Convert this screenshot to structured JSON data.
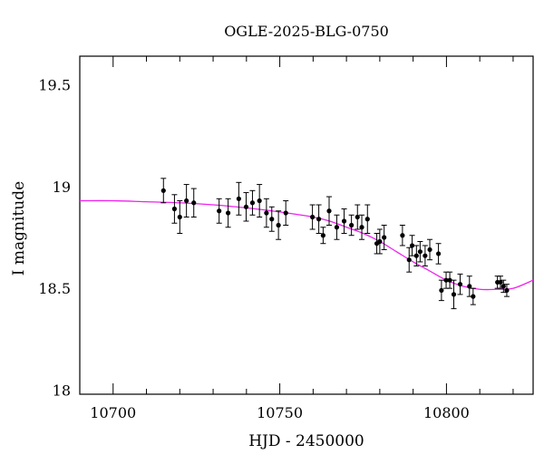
{
  "chart_data": {
    "type": "scatter",
    "title": "OGLE-2025-BLG-0750",
    "xlabel": "HJD - 2450000",
    "ylabel": "I magnitude",
    "xlim": [
      10690,
      10826
    ],
    "ylim": [
      19.64,
      17.98
    ],
    "y_inverted": true,
    "grid": false,
    "x_ticks": [
      10700,
      10750,
      10800
    ],
    "x_tick_labels": [
      "10700",
      "10750",
      "10800"
    ],
    "y_ticks": [
      18,
      18.5,
      19,
      19.5
    ],
    "y_tick_labels": [
      "18",
      "18.5",
      "19",
      "19.5"
    ],
    "colors": {
      "points": "#000000",
      "model": "#ee22ee"
    },
    "points": {
      "x": [
        10715.1,
        10718.4,
        10720.0,
        10722.0,
        10724.2,
        10731.8,
        10734.5,
        10737.7,
        10739.9,
        10741.8,
        10743.9,
        10746.0,
        10747.6,
        10749.6,
        10751.8,
        10759.8,
        10761.7,
        10763.0,
        10764.8,
        10767.1,
        10769.3,
        10771.5,
        10773.3,
        10774.6,
        10776.3,
        10779.1,
        10780.0,
        10781.3,
        10786.8,
        10788.8,
        10789.7,
        10791.0,
        10792.1,
        10793.6,
        10795.0,
        10797.6,
        10798.5,
        10799.9,
        10801.0,
        10802.2,
        10804.1,
        10806.9,
        10808.0,
        10815.3,
        10816.2,
        10817.1,
        10818.1
      ],
      "y": [
        18.98,
        18.89,
        18.85,
        18.93,
        18.92,
        18.88,
        18.87,
        18.94,
        18.9,
        18.92,
        18.93,
        18.87,
        18.84,
        18.81,
        18.87,
        18.85,
        18.84,
        18.76,
        18.88,
        18.8,
        18.83,
        18.81,
        18.85,
        18.8,
        18.84,
        18.72,
        18.73,
        18.75,
        18.76,
        18.64,
        18.71,
        18.66,
        18.68,
        18.66,
        18.69,
        18.67,
        18.49,
        18.54,
        18.54,
        18.47,
        18.52,
        18.51,
        18.46,
        18.53,
        18.53,
        18.51,
        18.49
      ],
      "err": [
        0.06,
        0.07,
        0.08,
        0.08,
        0.07,
        0.06,
        0.07,
        0.08,
        0.07,
        0.06,
        0.08,
        0.07,
        0.06,
        0.07,
        0.06,
        0.06,
        0.07,
        0.04,
        0.07,
        0.06,
        0.06,
        0.05,
        0.06,
        0.06,
        0.07,
        0.05,
        0.06,
        0.06,
        0.05,
        0.06,
        0.05,
        0.05,
        0.05,
        0.05,
        0.05,
        0.05,
        0.05,
        0.04,
        0.04,
        0.07,
        0.05,
        0.05,
        0.04,
        0.03,
        0.03,
        0.03,
        0.03
      ]
    },
    "model": {
      "x": [
        10690,
        10700,
        10710,
        10720,
        10730,
        10740,
        10750,
        10760,
        10765,
        10770,
        10775,
        10780,
        10785,
        10790,
        10795,
        10800,
        10805,
        10810,
        10815,
        10820,
        10826
      ],
      "y": [
        18.93,
        18.93,
        18.925,
        18.92,
        18.91,
        18.895,
        18.875,
        18.85,
        18.83,
        18.8,
        18.77,
        18.73,
        18.68,
        18.63,
        18.585,
        18.54,
        18.51,
        18.495,
        18.495,
        18.5,
        18.54
      ]
    }
  }
}
